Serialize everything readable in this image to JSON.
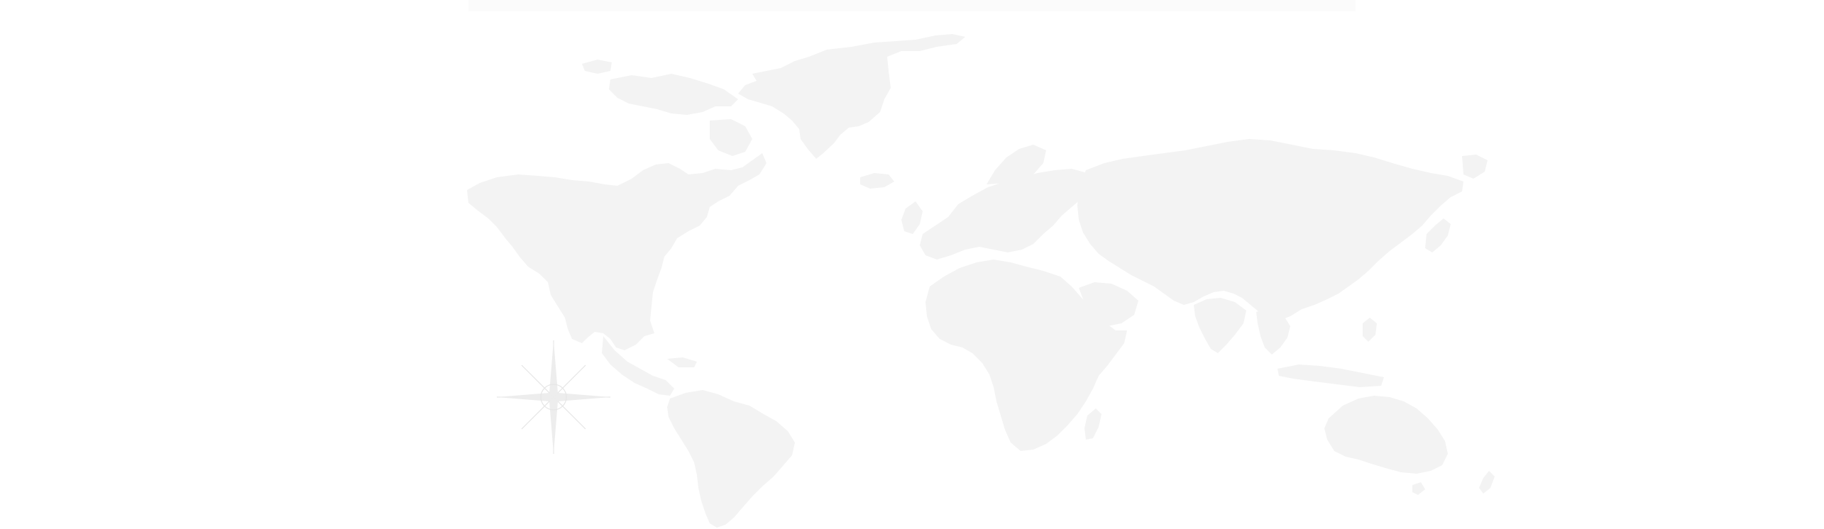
{
  "map": {
    "land_color": "#f3f3f3",
    "background_color": "#ffffff",
    "compass_color": "#e6e6e6"
  },
  "icons": {
    "compass": "compass-rose-icon",
    "continents": [
      "north-america",
      "greenland",
      "south-america",
      "europe",
      "africa",
      "asia",
      "australia",
      "madagascar",
      "japan",
      "uk",
      "iceland"
    ]
  }
}
